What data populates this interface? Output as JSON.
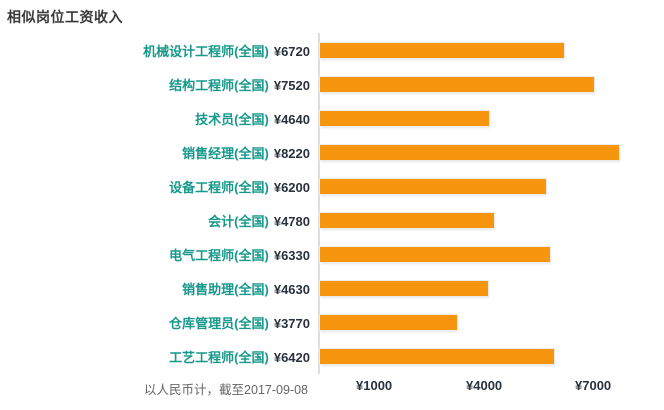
{
  "header": {
    "title": "相似岗位工资收入"
  },
  "chart_data": {
    "type": "bar",
    "orientation": "horizontal",
    "title": "相似岗位工资收入",
    "categories": [
      "机械设计工程师(全国)",
      "结构工程师(全国)",
      "技术员(全国)",
      "销售经理(全国)",
      "设备工程师(全国)",
      "会计(全国)",
      "电气工程师(全国)",
      "销售助理(全国)",
      "仓库管理员(全国)",
      "工艺工程师(全国)"
    ],
    "values": [
      6720,
      7520,
      4640,
      8220,
      6200,
      4780,
      6330,
      4630,
      3770,
      6420
    ],
    "value_labels": [
      "¥6720",
      "¥7520",
      "¥4640",
      "¥8220",
      "¥6200",
      "¥4780",
      "¥6330",
      "¥4630",
      "¥3770",
      "¥6420"
    ],
    "xlim": [
      0,
      9400
    ],
    "x_ticks": [
      {
        "value": 1000,
        "label": "¥1000"
      },
      {
        "value": 4000,
        "label": "¥4000"
      },
      {
        "value": 7000,
        "label": "¥7000"
      }
    ],
    "xlabel": "",
    "ylabel": "",
    "legend": "none",
    "grid": "left-axis-line-only",
    "footnote": "以人民币计，截至2017-09-08",
    "currency": "¥"
  },
  "colors": {
    "bar": "#f8950f",
    "bar_outline": "#ececec",
    "job_link": "#16988a",
    "salary_value": "#29323c",
    "title": "#3a3a3a",
    "axis_tick": "#29323c",
    "footnote": "#666666",
    "gridline": "#dedede",
    "background": "#ffffff"
  }
}
